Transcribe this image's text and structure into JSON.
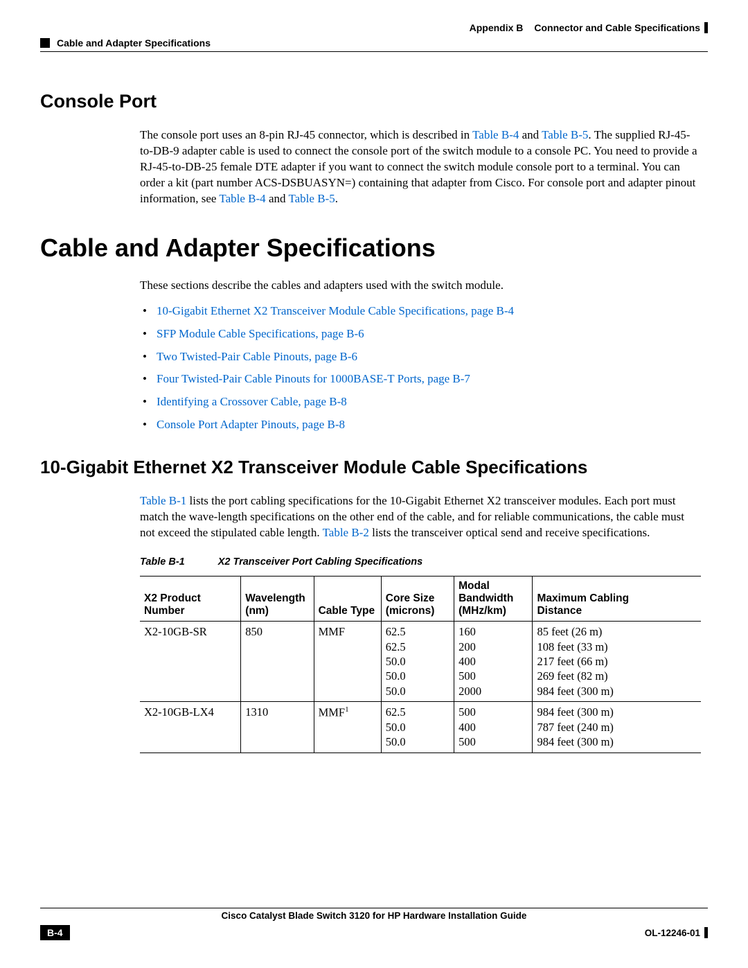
{
  "header": {
    "appendix": "Appendix B",
    "appendix_title": "Connector and Cable Specifications",
    "section": "Cable and Adapter Specifications"
  },
  "console_port": {
    "heading": "Console Port",
    "para_1": "The console port uses an 8-pin RJ-45 connector, which is described in ",
    "link_b4_a": "Table B-4",
    "para_2": " and ",
    "link_b5_a": "Table B-5",
    "para_3": ". The supplied RJ-45-to-DB-9 adapter cable is used to connect the console port of the switch module to a console PC. You need to provide a RJ-45-to-DB-25 female DTE adapter if you want to connect the switch module console port to a terminal. You can order a kit (part number ACS-DSBUASYN=) containing that adapter from Cisco. For console port and adapter pinout information, see ",
    "link_b4_b": "Table B-4",
    "para_4": " and ",
    "link_b5_b": "Table B-5",
    "para_5": "."
  },
  "cable_spec": {
    "heading": "Cable and Adapter Specifications",
    "intro": "These sections describe the cables and adapters used with the switch module.",
    "bullets": [
      "10-Gigabit Ethernet X2 Transceiver Module Cable Specifications, page B-4",
      "SFP Module Cable Specifications, page B-6",
      "Two Twisted-Pair Cable Pinouts, page B-6",
      "Four Twisted-Pair Cable Pinouts for 1000BASE-T Ports, page B-7",
      "Identifying a Crossover Cable, page B-8",
      "Console Port Adapter Pinouts, page B-8"
    ]
  },
  "x2_section": {
    "heading": "10-Gigabit Ethernet X2 Transceiver Module Cable Specifications",
    "p1a": "Table B-1",
    "p1b": " lists the port cabling specifications for the 10-Gigabit Ethernet X2 transceiver modules. Each port must match the wave-length specifications on the other end of the cable, and for reliable communications, the cable must not exceed the stipulated cable length. ",
    "p1c": "Table B-2",
    "p1d": " lists the transceiver optical send and receive specifications."
  },
  "table_b1": {
    "caption_num": "Table B-1",
    "caption_title": "X2 Transceiver Port Cabling Specifications",
    "columns": [
      "X2 Product Number",
      "Wavelength (nm)",
      "Cable Type",
      "Core Size (microns)",
      "Modal Bandwidth (MHz/km)",
      "Maximum Cabling Distance"
    ],
    "col_widths": [
      "18%",
      "13%",
      "12%",
      "13%",
      "14%",
      "30%"
    ],
    "rows": [
      {
        "product": "X2-10GB-SR",
        "wavelength": "850",
        "cable_type": "MMF",
        "core": [
          "62.5",
          "62.5",
          "50.0",
          "50.0",
          "50.0"
        ],
        "bandwidth": [
          "160",
          "200",
          "400",
          "500",
          "2000"
        ],
        "distance": [
          "85 feet (26 m)",
          "108 feet (33 m)",
          "217 feet (66 m)",
          "269 feet (82 m)",
          "984 feet (300 m)"
        ]
      },
      {
        "product": "X2-10GB-LX4",
        "wavelength": "1310",
        "cable_type_html": "MMF<span class=\"sup\">1</span>",
        "core": [
          "62.5",
          "50.0",
          "50.0"
        ],
        "bandwidth": [
          "500",
          "400",
          "500"
        ],
        "distance": [
          "984 feet (300 m)",
          "787 feet (240 m)",
          "984 feet (300 m)"
        ]
      }
    ]
  },
  "footer": {
    "guide": "Cisco Catalyst Blade Switch 3120 for HP Hardware Installation Guide",
    "page": "B-4",
    "doc_id": "OL-12246-01"
  },
  "colors": {
    "link": "#0066cc",
    "text": "#000000",
    "bg": "#ffffff"
  }
}
